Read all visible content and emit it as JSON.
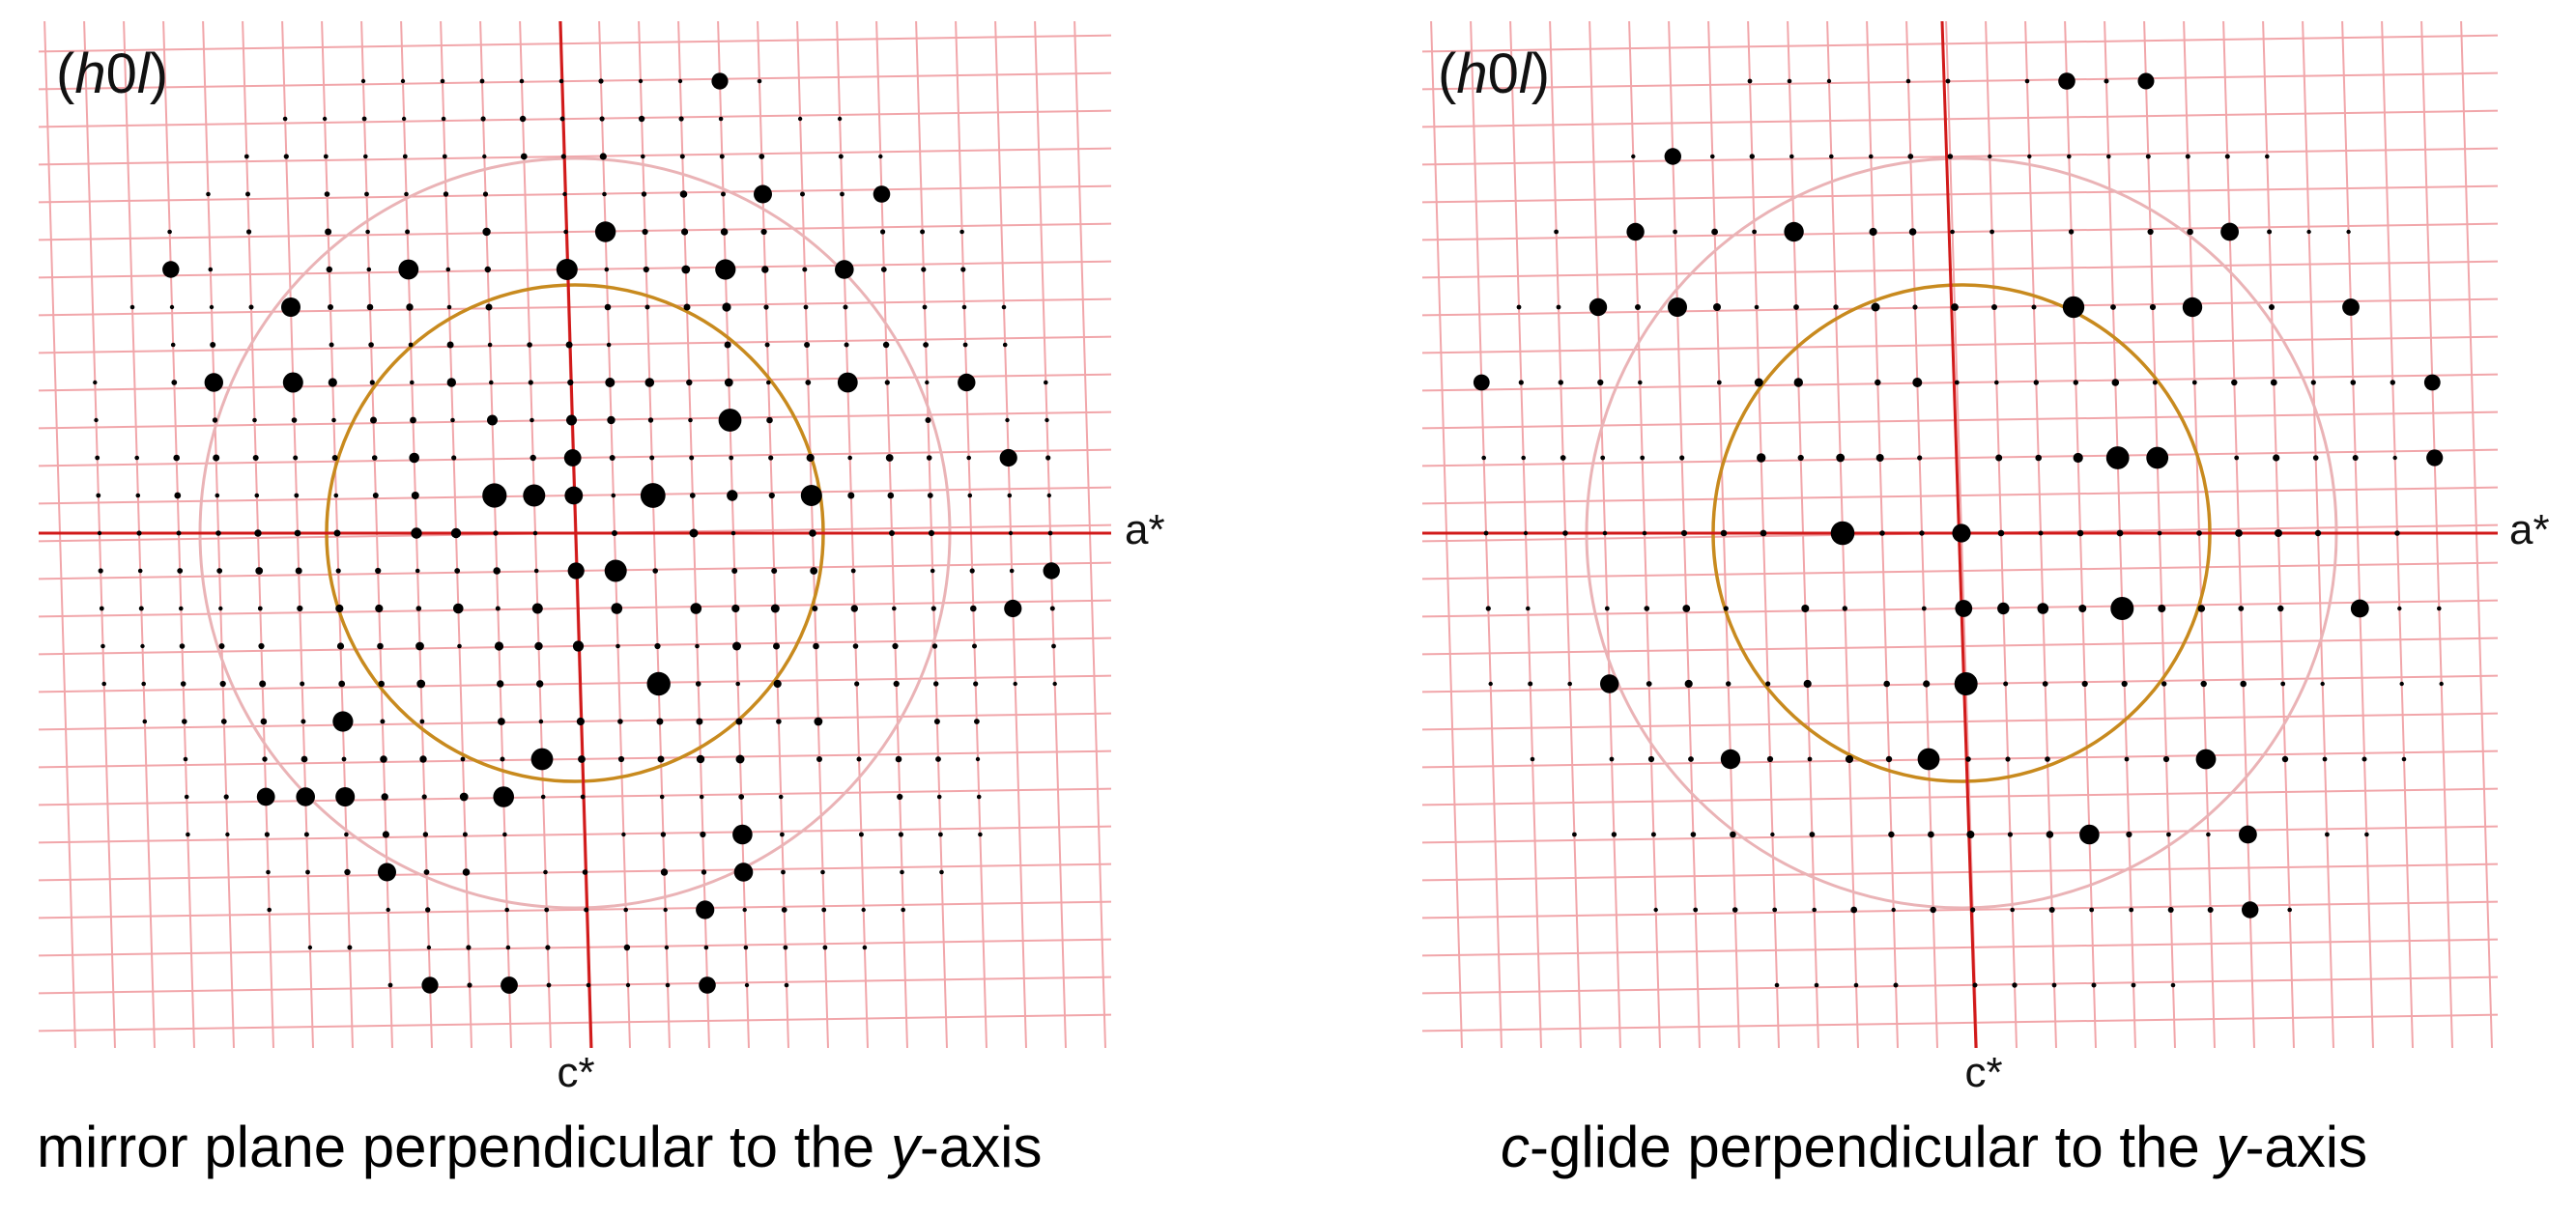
{
  "colors": {
    "grid": "#f1a6aa",
    "axis": "#d11a1a",
    "outer_circle": "#eab3b6",
    "inner_circle": "#c88a1e",
    "spot": "#000000"
  },
  "panels": [
    {
      "hkl_open": "(",
      "hkl_h": "h",
      "hkl_zero": "0",
      "hkl_l": "l",
      "hkl_close": ")",
      "x_axis_label": "a*",
      "y_axis_label": "c*",
      "caption_pre": "mirror plane perpendicular to the ",
      "caption_it": "y",
      "caption_post": "-axis",
      "symmetry": "mirror"
    },
    {
      "hkl_open": "(",
      "hkl_h": "h",
      "hkl_zero": "0",
      "hkl_l": "l",
      "hkl_close": ")",
      "x_axis_label": "a*",
      "y_axis_label": "c*",
      "caption_pre": "",
      "caption_it": "c",
      "caption_post": "-glide perpendicular to the ",
      "caption_it2": "y",
      "caption_post2": "-axis",
      "symmetry": "c-glide"
    }
  ]
}
